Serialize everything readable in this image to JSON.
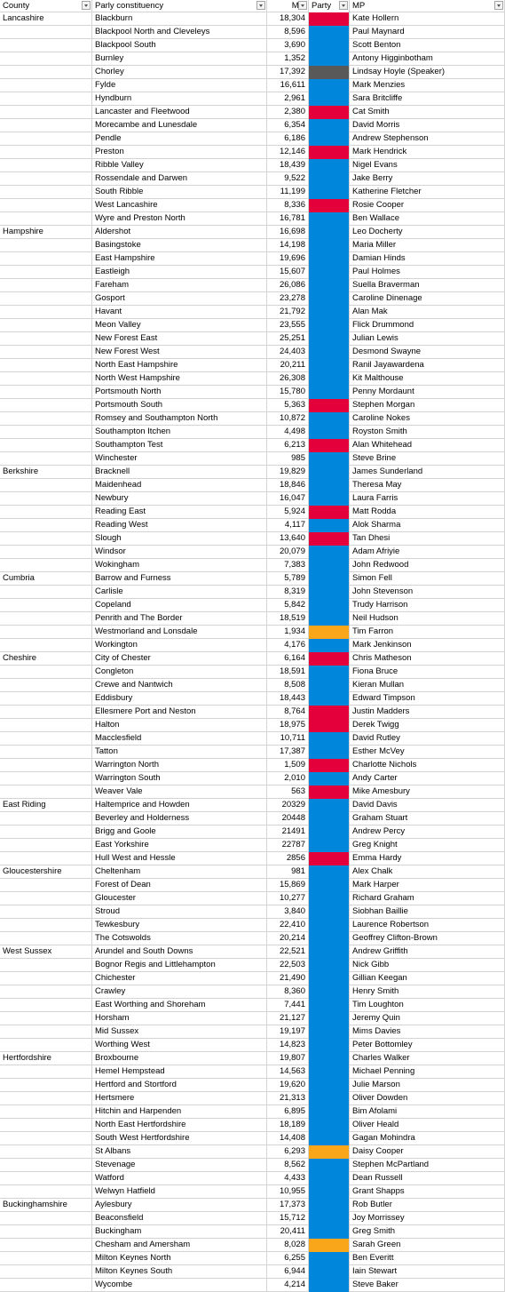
{
  "table": {
    "header": [
      "County",
      "Parly constituency",
      "Maj",
      "Party",
      "MP"
    ],
    "groups": [
      {
        "county": "Lancashire",
        "rows": [
          [
            "Blackburn",
            "18,304",
            "#e4003b",
            "Kate Hollern"
          ],
          [
            "Blackpool North and Cleveleys",
            "8,596",
            "#0087dc",
            "Paul Maynard"
          ],
          [
            "Blackpool South",
            "3,690",
            "#0087dc",
            "Scott Benton"
          ],
          [
            "Burnley",
            "1,352",
            "#0087dc",
            "Antony Higginbotham"
          ],
          [
            "Chorley",
            "17,392",
            "#595959",
            "Lindsay Hoyle (Speaker)"
          ],
          [
            "Fylde",
            "16,611",
            "#0087dc",
            "Mark Menzies"
          ],
          [
            "Hyndburn",
            "2,961",
            "#0087dc",
            "Sara Britcliffe"
          ],
          [
            "Lancaster and Fleetwood",
            "2,380",
            "#e4003b",
            "Cat Smith"
          ],
          [
            "Morecambe and Lunesdale",
            "6,354",
            "#0087dc",
            "David Morris"
          ],
          [
            "Pendle",
            "6,186",
            "#0087dc",
            "Andrew Stephenson"
          ],
          [
            "Preston",
            "12,146",
            "#e4003b",
            "Mark Hendrick"
          ],
          [
            "Ribble Valley",
            "18,439",
            "#0087dc",
            "Nigel Evans"
          ],
          [
            "Rossendale and Darwen",
            "9,522",
            "#0087dc",
            "Jake Berry"
          ],
          [
            "South Ribble",
            "11,199",
            "#0087dc",
            "Katherine Fletcher"
          ],
          [
            "West Lancashire",
            "8,336",
            "#e4003b",
            "Rosie Cooper"
          ],
          [
            "Wyre and Preston North",
            "16,781",
            "#0087dc",
            "Ben Wallace"
          ]
        ]
      },
      {
        "county": "Hampshire",
        "rows": [
          [
            "Aldershot",
            "16,698",
            "#0087dc",
            "Leo Docherty"
          ],
          [
            "Basingstoke",
            "14,198",
            "#0087dc",
            "Maria Miller"
          ],
          [
            "East Hampshire",
            "19,696",
            "#0087dc",
            "Damian Hinds"
          ],
          [
            "Eastleigh",
            "15,607",
            "#0087dc",
            "Paul Holmes"
          ],
          [
            "Fareham",
            "26,086",
            "#0087dc",
            "Suella Braverman"
          ],
          [
            "Gosport",
            "23,278",
            "#0087dc",
            "Caroline Dinenage"
          ],
          [
            "Havant",
            "21,792",
            "#0087dc",
            "Alan Mak"
          ],
          [
            "Meon Valley",
            "23,555",
            "#0087dc",
            "Flick Drummond"
          ],
          [
            "New Forest East",
            "25,251",
            "#0087dc",
            "Julian Lewis"
          ],
          [
            "New Forest West",
            "24,403",
            "#0087dc",
            "Desmond Swayne"
          ],
          [
            "North East Hampshire",
            "20,211",
            "#0087dc",
            "Ranil Jayawardena"
          ],
          [
            "North West Hampshire",
            "26,308",
            "#0087dc",
            "Kit Malthouse"
          ],
          [
            "Portsmouth North",
            "15,780",
            "#0087dc",
            "Penny Mordaunt"
          ],
          [
            "Portsmouth South",
            "5,363",
            "#e4003b",
            "Stephen Morgan"
          ],
          [
            "Romsey and Southampton North",
            "10,872",
            "#0087dc",
            "Caroline Nokes"
          ],
          [
            "Southampton Itchen",
            "4,498",
            "#0087dc",
            "Royston Smith"
          ],
          [
            "Southampton Test",
            "6,213",
            "#e4003b",
            "Alan Whitehead"
          ],
          [
            "Winchester",
            "985",
            "#0087dc",
            "Steve Brine"
          ]
        ]
      },
      {
        "county": "Berkshire",
        "rows": [
          [
            "Bracknell",
            "19,829",
            "#0087dc",
            "James Sunderland"
          ],
          [
            "Maidenhead",
            "18,846",
            "#0087dc",
            "Theresa May"
          ],
          [
            "Newbury",
            "16,047",
            "#0087dc",
            "Laura Farris"
          ],
          [
            "Reading East",
            "5,924",
            "#e4003b",
            "Matt Rodda"
          ],
          [
            "Reading West",
            "4,117",
            "#0087dc",
            "Alok Sharma"
          ],
          [
            "Slough",
            "13,640",
            "#e4003b",
            "Tan Dhesi"
          ],
          [
            "Windsor",
            "20,079",
            "#0087dc",
            "Adam Afriyie"
          ],
          [
            "Wokingham",
            "7,383",
            "#0087dc",
            "John Redwood"
          ]
        ]
      },
      {
        "county": "Cumbria",
        "rows": [
          [
            "Barrow and Furness",
            "5,789",
            "#0087dc",
            "Simon Fell"
          ],
          [
            "Carlisle",
            "8,319",
            "#0087dc",
            "John Stevenson"
          ],
          [
            "Copeland",
            "5,842",
            "#0087dc",
            "Trudy Harrison"
          ],
          [
            "Penrith and The Border",
            "18,519",
            "#0087dc",
            "Neil Hudson"
          ],
          [
            "Westmorland and Lonsdale",
            "1,934",
            "#faa61a",
            "Tim Farron"
          ],
          [
            "Workington",
            "4,176",
            "#0087dc",
            "Mark Jenkinson"
          ]
        ]
      },
      {
        "county": "Cheshire",
        "rows": [
          [
            "City of Chester",
            "6,164",
            "#e4003b",
            "Chris Matheson"
          ],
          [
            "Congleton",
            "18,591",
            "#0087dc",
            "Fiona Bruce"
          ],
          [
            "Crewe and Nantwich",
            "8,508",
            "#0087dc",
            "Kieran Mullan"
          ],
          [
            "Eddisbury",
            "18,443",
            "#0087dc",
            "Edward Timpson"
          ],
          [
            "Ellesmere Port and Neston",
            "8,764",
            "#e4003b",
            "Justin Madders"
          ],
          [
            "Halton",
            "18,975",
            "#e4003b",
            "Derek Twigg"
          ],
          [
            "Macclesfield",
            "10,711",
            "#0087dc",
            "David Rutley"
          ],
          [
            "Tatton",
            "17,387",
            "#0087dc",
            "Esther McVey"
          ],
          [
            "Warrington North",
            "1,509",
            "#e4003b",
            "Charlotte Nichols"
          ],
          [
            "Warrington South",
            "2,010",
            "#0087dc",
            "Andy Carter"
          ],
          [
            "Weaver Vale",
            "563",
            "#e4003b",
            "Mike Amesbury"
          ]
        ]
      },
      {
        "county": "East Riding",
        "rows": [
          [
            "Haltemprice and Howden",
            "20329",
            "#0087dc",
            "David Davis"
          ],
          [
            "Beverley and Holderness",
            "20448",
            "#0087dc",
            "Graham Stuart"
          ],
          [
            "Brigg and Goole",
            "21491",
            "#0087dc",
            "Andrew Percy"
          ],
          [
            "East Yorkshire",
            "22787",
            "#0087dc",
            "Greg Knight"
          ],
          [
            "Hull West and Hessle",
            "2856",
            "#e4003b",
            "Emma Hardy"
          ]
        ]
      },
      {
        "county": "Gloucestershire",
        "rows": [
          [
            "Cheltenham",
            "981",
            "#0087dc",
            "Alex Chalk"
          ],
          [
            "Forest of Dean",
            "15,869",
            "#0087dc",
            "Mark Harper"
          ],
          [
            "Gloucester",
            "10,277",
            "#0087dc",
            "Richard Graham"
          ],
          [
            "Stroud",
            "3,840",
            "#0087dc",
            "Siobhan Baillie"
          ],
          [
            "Tewkesbury",
            "22,410",
            "#0087dc",
            "Laurence Robertson"
          ],
          [
            "The Cotswolds",
            "20,214",
            "#0087dc",
            "Geoffrey Clifton-Brown"
          ]
        ]
      },
      {
        "county": "West Sussex",
        "rows": [
          [
            "Arundel and South Downs",
            "22,521",
            "#0087dc",
            "Andrew Griffith"
          ],
          [
            "Bognor Regis and Littlehampton",
            "22,503",
            "#0087dc",
            "Nick Gibb"
          ],
          [
            "Chichester",
            "21,490",
            "#0087dc",
            "Gillian Keegan"
          ],
          [
            "Crawley",
            "8,360",
            "#0087dc",
            "Henry Smith"
          ],
          [
            "East Worthing and Shoreham",
            "7,441",
            "#0087dc",
            "Tim Loughton"
          ],
          [
            "Horsham",
            "21,127",
            "#0087dc",
            "Jeremy Quin"
          ],
          [
            "Mid Sussex",
            "19,197",
            "#0087dc",
            "Mims Davies"
          ],
          [
            "Worthing West",
            "14,823",
            "#0087dc",
            "Peter Bottomley"
          ]
        ]
      },
      {
        "county": "Hertfordshire",
        "rows": [
          [
            "Broxbourne",
            "19,807",
            "#0087dc",
            "Charles Walker"
          ],
          [
            "Hemel Hempstead",
            "14,563",
            "#0087dc",
            "Michael Penning"
          ],
          [
            "Hertford and Stortford",
            "19,620",
            "#0087dc",
            "Julie Marson"
          ],
          [
            "Hertsmere",
            "21,313",
            "#0087dc",
            "Oliver Dowden"
          ],
          [
            "Hitchin and Harpenden",
            "6,895",
            "#0087dc",
            "Bim Afolami"
          ],
          [
            "North East Hertfordshire",
            "18,189",
            "#0087dc",
            "Oliver Heald"
          ],
          [
            "South West Hertfordshire",
            "14,408",
            "#0087dc",
            "Gagan Mohindra"
          ],
          [
            "St Albans",
            "6,293",
            "#faa61a",
            "Daisy Cooper"
          ],
          [
            "Stevenage",
            "8,562",
            "#0087dc",
            "Stephen McPartland"
          ],
          [
            "Watford",
            "4,433",
            "#0087dc",
            "Dean Russell"
          ],
          [
            "Welwyn Hatfield",
            "10,955",
            "#0087dc",
            "Grant Shapps"
          ]
        ]
      },
      {
        "county": "Buckinghamshire",
        "rows": [
          [
            "Aylesbury",
            "17,373",
            "#0087dc",
            "Rob Butler"
          ],
          [
            "Beaconsfield",
            "15,712",
            "#0087dc",
            "Joy Morrissey"
          ],
          [
            "Buckingham",
            "20,411",
            "#0087dc",
            "Greg Smith"
          ],
          [
            "Chesham and Amersham",
            "8,028",
            "#faa61a",
            "Sarah Green"
          ],
          [
            "Milton Keynes North",
            "6,255",
            "#0087dc",
            "Ben Everitt"
          ],
          [
            "Milton Keynes South",
            "6,944",
            "#0087dc",
            "Iain Stewart"
          ],
          [
            "Wycombe",
            "4,214",
            "#0087dc",
            "Steve Baker"
          ]
        ]
      }
    ]
  }
}
